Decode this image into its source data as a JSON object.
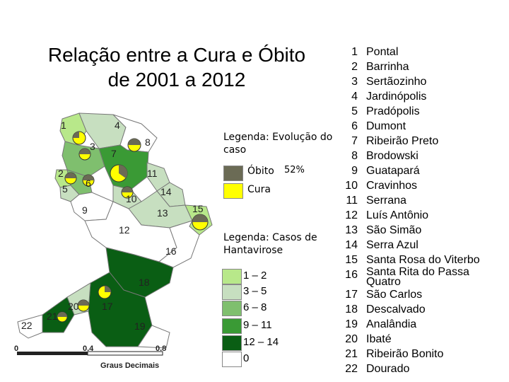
{
  "title_line1": "Relação entre a Cura e Óbito",
  "title_line2": "de 2001 a 2012",
  "legend_case": {
    "title": "Legenda: Evolução do caso",
    "items": [
      {
        "label": "Óbito",
        "color": "#6b6b55"
      },
      {
        "label": "Cura",
        "color": "#ffff00"
      }
    ],
    "percent": "52%"
  },
  "legend_hanta": {
    "title": "Legenda: Casos de Hantavirose",
    "items": [
      {
        "label": "1 – 2",
        "color": "#b8e88a"
      },
      {
        "label": "3 – 5",
        "color": "#c7dfc0"
      },
      {
        "label": "6 – 8",
        "color": "#7fbf6e"
      },
      {
        "label": "9 – 11",
        "color": "#3a9a35"
      },
      {
        "label": "12 – 14",
        "color": "#0a5e14"
      },
      {
        "label": "0",
        "color": "#ffffff"
      }
    ]
  },
  "scale": {
    "ticks": [
      "0",
      "0.4",
      "0.8"
    ],
    "label": "Graus Decimais"
  },
  "map_labels": [
    "1",
    "4",
    "8",
    "3",
    "7",
    "2",
    "5",
    "6",
    "11",
    "14",
    "10",
    "9",
    "13",
    "15",
    "12",
    "16",
    "18",
    "20",
    "17",
    "21",
    "22",
    "19"
  ],
  "municipalities": [
    {
      "n": "1",
      "name": "Pontal"
    },
    {
      "n": "2",
      "name": "Barrinha"
    },
    {
      "n": "3",
      "name": "Sertãozinho"
    },
    {
      "n": "4",
      "name": "Jardinópolis"
    },
    {
      "n": "5",
      "name": "Pradópolis"
    },
    {
      "n": "6",
      "name": "Dumont"
    },
    {
      "n": "7",
      "name": "Ribeirão Preto"
    },
    {
      "n": "8",
      "name": "Brodowski"
    },
    {
      "n": "9",
      "name": "Guatapará"
    },
    {
      "n": "10",
      "name": "Cravinhos"
    },
    {
      "n": "11",
      "name": "Serrana"
    },
    {
      "n": "12",
      "name": "Luís Antônio"
    },
    {
      "n": "13",
      "name": "São Simão"
    },
    {
      "n": "14",
      "name": "Serra Azul"
    },
    {
      "n": "15",
      "name": "Santa Rosa do Viterbo"
    },
    {
      "n": "16",
      "name": "Santa Rita do Passa Quatro"
    },
    {
      "n": "17",
      "name": "São Carlos"
    },
    {
      "n": "18",
      "name": "Descalvado"
    },
    {
      "n": "19",
      "name": "Analândia"
    },
    {
      "n": "20",
      "name": "Ibaté"
    },
    {
      "n": "21",
      "name": "Ribeirão Bonito"
    },
    {
      "n": "22",
      "name": "Dourado"
    }
  ]
}
